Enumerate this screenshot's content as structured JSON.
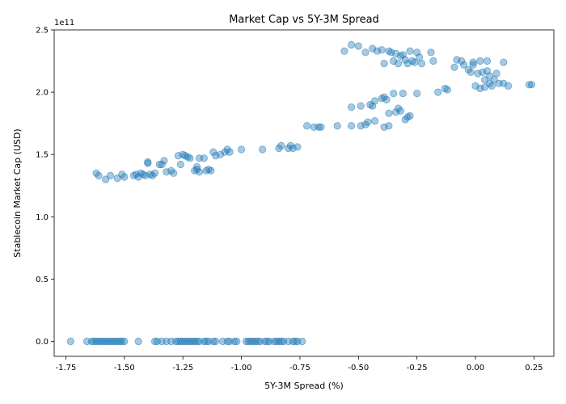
{
  "chart_data": {
    "type": "scatter",
    "title": "Market Cap vs 5Y-3M Spread",
    "xlabel": "5Y-3M Spread (%)",
    "ylabel": "Stablecoin Market Cap (USD)",
    "y_scale_label": "1e11",
    "xlim": [
      -1.8,
      0.335
    ],
    "ylim": [
      -0.12,
      2.5
    ],
    "x_ticks": [
      -1.75,
      -1.5,
      -1.25,
      -1.0,
      -0.75,
      -0.5,
      -0.25,
      0.0,
      0.25
    ],
    "x_tick_labels": [
      "-1.75",
      "-1.50",
      "-1.25",
      "-1.00",
      "-0.75",
      "-0.50",
      "-0.25",
      "0.00",
      "0.25"
    ],
    "y_ticks": [
      0.0,
      0.5,
      1.0,
      1.5,
      2.0,
      2.5
    ],
    "y_tick_labels": [
      "0.0",
      "0.5",
      "1.0",
      "1.5",
      "2.0",
      "2.5"
    ],
    "grid": false,
    "point_color": "#1f77b4",
    "point_alpha": 0.4,
    "series": [
      {
        "points": [
          [
            -1.73,
            0
          ],
          [
            -1.66,
            0
          ],
          [
            -1.64,
            0
          ],
          [
            -1.63,
            0
          ],
          [
            -1.62,
            0
          ],
          [
            -1.61,
            0
          ],
          [
            -1.6,
            0
          ],
          [
            -1.59,
            0
          ],
          [
            -1.58,
            0
          ],
          [
            -1.57,
            0
          ],
          [
            -1.56,
            0
          ],
          [
            -1.55,
            0
          ],
          [
            -1.54,
            0
          ],
          [
            -1.53,
            0
          ],
          [
            -1.52,
            0
          ],
          [
            -1.51,
            0
          ],
          [
            -1.5,
            0
          ],
          [
            -1.44,
            0
          ],
          [
            -1.37,
            0
          ],
          [
            -1.36,
            0
          ],
          [
            -1.34,
            0
          ],
          [
            -1.32,
            0
          ],
          [
            -1.3,
            0
          ],
          [
            -1.28,
            0
          ],
          [
            -1.27,
            0
          ],
          [
            -1.26,
            0
          ],
          [
            -1.25,
            0
          ],
          [
            -1.24,
            0
          ],
          [
            -1.23,
            0
          ],
          [
            -1.22,
            0
          ],
          [
            -1.21,
            0
          ],
          [
            -1.2,
            0
          ],
          [
            -1.19,
            0
          ],
          [
            -1.18,
            0
          ],
          [
            -1.16,
            0
          ],
          [
            -1.15,
            0
          ],
          [
            -1.14,
            0
          ],
          [
            -1.12,
            0
          ],
          [
            -1.11,
            0
          ],
          [
            -1.08,
            0
          ],
          [
            -1.06,
            0
          ],
          [
            -1.05,
            0
          ],
          [
            -1.03,
            0
          ],
          [
            -1.02,
            0
          ],
          [
            -0.98,
            0
          ],
          [
            -0.97,
            0
          ],
          [
            -0.96,
            0
          ],
          [
            -0.95,
            0
          ],
          [
            -0.94,
            0
          ],
          [
            -0.93,
            0
          ],
          [
            -0.92,
            0
          ],
          [
            -0.9,
            0
          ],
          [
            -0.89,
            0
          ],
          [
            -0.88,
            0
          ],
          [
            -0.86,
            0
          ],
          [
            -0.85,
            0
          ],
          [
            -0.84,
            0
          ],
          [
            -0.83,
            0
          ],
          [
            -0.82,
            0
          ],
          [
            -0.8,
            0
          ],
          [
            -0.78,
            0
          ],
          [
            -0.77,
            0
          ],
          [
            -0.76,
            0
          ],
          [
            -0.74,
            0
          ],
          [
            -1.62,
            1.35
          ],
          [
            -1.61,
            1.33
          ],
          [
            -1.58,
            1.3
          ],
          [
            -1.56,
            1.33
          ],
          [
            -1.53,
            1.31
          ],
          [
            -1.51,
            1.34
          ],
          [
            -1.5,
            1.32
          ],
          [
            -1.46,
            1.33
          ],
          [
            -1.45,
            1.34
          ],
          [
            -1.44,
            1.32
          ],
          [
            -1.43,
            1.35
          ],
          [
            -1.42,
            1.34
          ],
          [
            -1.41,
            1.33
          ],
          [
            -1.4,
            1.44
          ],
          [
            -1.4,
            1.43
          ],
          [
            -1.39,
            1.34
          ],
          [
            -1.38,
            1.33
          ],
          [
            -1.37,
            1.35
          ],
          [
            -1.35,
            1.42
          ],
          [
            -1.34,
            1.42
          ],
          [
            -1.33,
            1.45
          ],
          [
            -1.32,
            1.36
          ],
          [
            -1.3,
            1.37
          ],
          [
            -1.29,
            1.35
          ],
          [
            -1.27,
            1.49
          ],
          [
            -1.26,
            1.42
          ],
          [
            -1.25,
            1.5
          ],
          [
            -1.24,
            1.49
          ],
          [
            -1.23,
            1.48
          ],
          [
            -1.22,
            1.47
          ],
          [
            -1.2,
            1.37
          ],
          [
            -1.19,
            1.4
          ],
          [
            -1.19,
            1.38
          ],
          [
            -1.18,
            1.36
          ],
          [
            -1.18,
            1.47
          ],
          [
            -1.16,
            1.47
          ],
          [
            -1.15,
            1.37
          ],
          [
            -1.14,
            1.38
          ],
          [
            -1.13,
            1.37
          ],
          [
            -1.12,
            1.52
          ],
          [
            -1.11,
            1.49
          ],
          [
            -1.09,
            1.5
          ],
          [
            -1.07,
            1.52
          ],
          [
            -1.06,
            1.54
          ],
          [
            -1.05,
            1.52
          ],
          [
            -1.0,
            1.54
          ],
          [
            -0.91,
            1.54
          ],
          [
            -0.84,
            1.55
          ],
          [
            -0.83,
            1.57
          ],
          [
            -0.8,
            1.55
          ],
          [
            -0.79,
            1.57
          ],
          [
            -0.78,
            1.55
          ],
          [
            -0.76,
            1.56
          ],
          [
            -0.72,
            1.73
          ],
          [
            -0.69,
            1.72
          ],
          [
            -0.67,
            1.72
          ],
          [
            -0.66,
            1.72
          ],
          [
            -0.59,
            1.73
          ],
          [
            -0.53,
            1.73
          ],
          [
            -0.49,
            1.73
          ],
          [
            -0.47,
            1.74
          ],
          [
            -0.46,
            1.76
          ],
          [
            -0.43,
            1.77
          ],
          [
            -0.39,
            1.72
          ],
          [
            -0.37,
            1.73
          ],
          [
            -0.53,
            1.88
          ],
          [
            -0.49,
            1.89
          ],
          [
            -0.45,
            1.9
          ],
          [
            -0.44,
            1.89
          ],
          [
            -0.43,
            1.93
          ],
          [
            -0.4,
            1.95
          ],
          [
            -0.39,
            1.96
          ],
          [
            -0.38,
            1.94
          ],
          [
            -0.37,
            1.83
          ],
          [
            -0.35,
            1.99
          ],
          [
            -0.34,
            1.84
          ],
          [
            -0.33,
            1.87
          ],
          [
            -0.32,
            1.85
          ],
          [
            -0.31,
            1.99
          ],
          [
            -0.3,
            1.78
          ],
          [
            -0.29,
            1.8
          ],
          [
            -0.28,
            1.81
          ],
          [
            -0.25,
            1.99
          ],
          [
            -0.56,
            2.33
          ],
          [
            -0.53,
            2.38
          ],
          [
            -0.5,
            2.37
          ],
          [
            -0.47,
            2.32
          ],
          [
            -0.44,
            2.35
          ],
          [
            -0.42,
            2.33
          ],
          [
            -0.4,
            2.34
          ],
          [
            -0.39,
            2.23
          ],
          [
            -0.37,
            2.33
          ],
          [
            -0.36,
            2.32
          ],
          [
            -0.35,
            2.25
          ],
          [
            -0.34,
            2.31
          ],
          [
            -0.33,
            2.23
          ],
          [
            -0.32,
            2.29
          ],
          [
            -0.31,
            2.3
          ],
          [
            -0.3,
            2.26
          ],
          [
            -0.29,
            2.23
          ],
          [
            -0.28,
            2.33
          ],
          [
            -0.27,
            2.25
          ],
          [
            -0.26,
            2.24
          ],
          [
            -0.25,
            2.32
          ],
          [
            -0.24,
            2.28
          ],
          [
            -0.23,
            2.23
          ],
          [
            -0.19,
            2.32
          ],
          [
            -0.18,
            2.25
          ],
          [
            -0.16,
            2.0
          ],
          [
            -0.13,
            2.03
          ],
          [
            -0.12,
            2.02
          ],
          [
            -0.09,
            2.2
          ],
          [
            -0.08,
            2.26
          ],
          [
            -0.06,
            2.25
          ],
          [
            -0.05,
            2.22
          ],
          [
            -0.03,
            2.18
          ],
          [
            -0.02,
            2.16
          ],
          [
            -0.01,
            2.24
          ],
          [
            -0.01,
            2.22
          ],
          [
            0.0,
            2.05
          ],
          [
            0.01,
            2.15
          ],
          [
            0.02,
            2.25
          ],
          [
            0.02,
            2.03
          ],
          [
            0.03,
            2.16
          ],
          [
            0.04,
            2.04
          ],
          [
            0.04,
            2.1
          ],
          [
            0.05,
            2.17
          ],
          [
            0.05,
            2.25
          ],
          [
            0.06,
            2.07
          ],
          [
            0.06,
            2.13
          ],
          [
            0.07,
            2.05
          ],
          [
            0.08,
            2.1
          ],
          [
            0.09,
            2.15
          ],
          [
            0.1,
            2.07
          ],
          [
            0.12,
            2.07
          ],
          [
            0.12,
            2.24
          ],
          [
            0.14,
            2.05
          ],
          [
            0.23,
            2.06
          ],
          [
            0.24,
            2.06
          ]
        ]
      }
    ]
  }
}
